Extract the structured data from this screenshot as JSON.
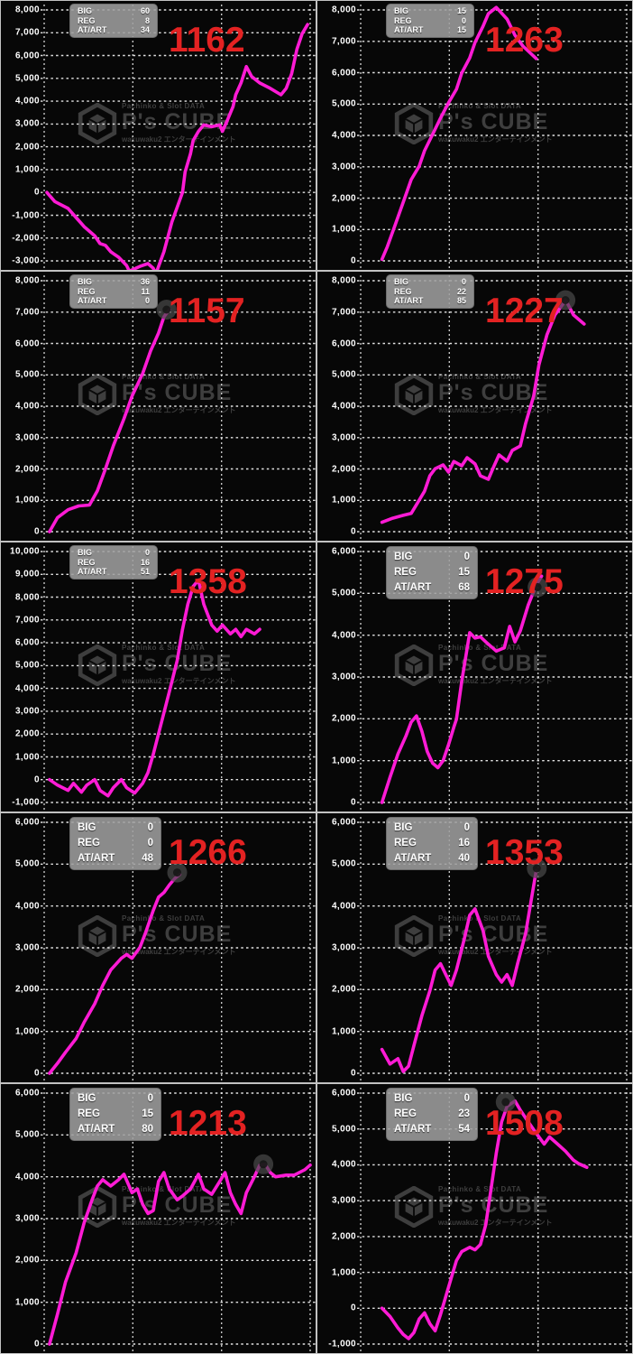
{
  "watermark": {
    "small_title": "Pachinko & Slot DATA",
    "brand": "P's CUBE",
    "tagline": "wakuwaku2 エンターテインメント",
    "color": "#3e3e3e"
  },
  "legend_labels": [
    "BIG",
    "REG",
    "AT/ART"
  ],
  "colors": {
    "line": "#ff1bd5",
    "number": "#e32222",
    "grid": "#eeeeee",
    "label": "#ffffff",
    "panel_bg": "#070707",
    "legend_bg": "#9e9e9e",
    "marker_outer": "#4a4a4a",
    "marker_inner": "#161616"
  },
  "chart_data": [
    {
      "type": "line",
      "number": "1162",
      "legend_values": [
        60,
        8,
        34
      ],
      "legend_size": "small",
      "y_max": 8000,
      "y_min": -3000,
      "y_step": 1000,
      "y_tick_labels": [
        "8,000",
        "7,000",
        "6,000",
        "5,000",
        "4,000",
        "3,000",
        "2,000",
        "1,000",
        "0",
        "-1,000",
        "-2,000",
        "-3,000"
      ],
      "points": [
        [
          0.01,
          0
        ],
        [
          0.04,
          -400
        ],
        [
          0.09,
          -700
        ],
        [
          0.12,
          -1100
        ],
        [
          0.15,
          -1500
        ],
        [
          0.19,
          -1900
        ],
        [
          0.21,
          -2240
        ],
        [
          0.23,
          -2320
        ],
        [
          0.25,
          -2600
        ],
        [
          0.28,
          -2840
        ],
        [
          0.31,
          -3200
        ],
        [
          0.32,
          -3450
        ],
        [
          0.36,
          -3240
        ],
        [
          0.39,
          -3120
        ],
        [
          0.41,
          -3320
        ],
        [
          0.42,
          -3560
        ],
        [
          0.45,
          -2600
        ],
        [
          0.48,
          -1300
        ],
        [
          0.52,
          0
        ],
        [
          0.53,
          900
        ],
        [
          0.55,
          1700
        ],
        [
          0.56,
          2280
        ],
        [
          0.58,
          2680
        ],
        [
          0.6,
          2960
        ],
        [
          0.63,
          2880
        ],
        [
          0.66,
          2960
        ],
        [
          0.67,
          2680
        ],
        [
          0.69,
          3200
        ],
        [
          0.71,
          3760
        ],
        [
          0.72,
          4280
        ],
        [
          0.74,
          4800
        ],
        [
          0.76,
          5520
        ],
        [
          0.78,
          5080
        ],
        [
          0.81,
          4800
        ],
        [
          0.85,
          4560
        ],
        [
          0.89,
          4280
        ],
        [
          0.91,
          4560
        ],
        [
          0.93,
          5200
        ],
        [
          0.95,
          6280
        ],
        [
          0.97,
          6960
        ],
        [
          0.99,
          7360
        ]
      ],
      "marker": null
    },
    {
      "type": "line",
      "number": "1263",
      "legend_values": [
        15,
        0,
        15
      ],
      "legend_size": "small",
      "y_max": 8000,
      "y_min": 0,
      "y_step": 1000,
      "y_tick_labels": [
        "8,000",
        "7,000",
        "6,000",
        "5,000",
        "4,000",
        "3,000",
        "2,000",
        "1,000",
        "0"
      ],
      "points": [
        [
          0.08,
          50
        ],
        [
          0.1,
          450
        ],
        [
          0.13,
          1150
        ],
        [
          0.16,
          1870
        ],
        [
          0.19,
          2590
        ],
        [
          0.22,
          3020
        ],
        [
          0.24,
          3510
        ],
        [
          0.27,
          4030
        ],
        [
          0.3,
          4550
        ],
        [
          0.33,
          5040
        ],
        [
          0.36,
          5470
        ],
        [
          0.38,
          5990
        ],
        [
          0.41,
          6470
        ],
        [
          0.43,
          6960
        ],
        [
          0.46,
          7480
        ],
        [
          0.48,
          7880
        ],
        [
          0.51,
          8080
        ],
        [
          0.55,
          7710
        ],
        [
          0.58,
          7190
        ],
        [
          0.61,
          6850
        ],
        [
          0.66,
          6450
        ]
      ],
      "marker": null
    },
    {
      "type": "line",
      "number": "1157",
      "legend_values": [
        36,
        11,
        0
      ],
      "legend_size": "small",
      "y_max": 8000,
      "y_min": 0,
      "y_step": 1000,
      "y_tick_labels": [
        "8,000",
        "7,000",
        "6,000",
        "5,000",
        "4,000",
        "3,000",
        "2,000",
        "1,000",
        "0"
      ],
      "points": [
        [
          0.02,
          0
        ],
        [
          0.05,
          450
        ],
        [
          0.09,
          700
        ],
        [
          0.13,
          820
        ],
        [
          0.17,
          850
        ],
        [
          0.2,
          1300
        ],
        [
          0.23,
          2000
        ],
        [
          0.26,
          2740
        ],
        [
          0.3,
          3600
        ],
        [
          0.33,
          4320
        ],
        [
          0.37,
          5040
        ],
        [
          0.4,
          5760
        ],
        [
          0.43,
          6330
        ],
        [
          0.45,
          6850
        ],
        [
          0.47,
          7080
        ]
      ],
      "marker": [
        0.46,
        7080
      ]
    },
    {
      "type": "line",
      "number": "1227",
      "legend_values": [
        0,
        22,
        85
      ],
      "legend_size": "small",
      "y_max": 8000,
      "y_min": 0,
      "y_step": 1000,
      "y_tick_labels": [
        "8,000",
        "7,000",
        "6,000",
        "5,000",
        "4,000",
        "3,000",
        "2,000",
        "1,000",
        "0"
      ],
      "points": [
        [
          0.08,
          300
        ],
        [
          0.12,
          430
        ],
        [
          0.16,
          520
        ],
        [
          0.19,
          580
        ],
        [
          0.21,
          860
        ],
        [
          0.24,
          1290
        ],
        [
          0.26,
          1780
        ],
        [
          0.28,
          2010
        ],
        [
          0.31,
          2130
        ],
        [
          0.33,
          1900
        ],
        [
          0.35,
          2240
        ],
        [
          0.38,
          2100
        ],
        [
          0.4,
          2360
        ],
        [
          0.43,
          2160
        ],
        [
          0.45,
          1780
        ],
        [
          0.48,
          1670
        ],
        [
          0.5,
          2070
        ],
        [
          0.52,
          2450
        ],
        [
          0.55,
          2250
        ],
        [
          0.57,
          2590
        ],
        [
          0.6,
          2730
        ],
        [
          0.62,
          3450
        ],
        [
          0.65,
          4320
        ],
        [
          0.67,
          5320
        ],
        [
          0.7,
          6270
        ],
        [
          0.73,
          6910
        ],
        [
          0.76,
          7250
        ],
        [
          0.77,
          7400
        ],
        [
          0.8,
          6910
        ],
        [
          0.84,
          6620
        ]
      ],
      "marker": [
        0.77,
        7380
      ]
    },
    {
      "type": "line",
      "number": "1358",
      "legend_values": [
        0,
        16,
        51
      ],
      "legend_size": "small",
      "y_max": 10000,
      "y_min": -1000,
      "y_step": 1000,
      "y_tick_labels": [
        "10,000",
        "9,000",
        "8,000",
        "7,000",
        "6,000",
        "5,000",
        "4,000",
        "3,000",
        "2,000",
        "1,000",
        "0",
        "-1,000"
      ],
      "points": [
        [
          0.02,
          0
        ],
        [
          0.05,
          -240
        ],
        [
          0.09,
          -470
        ],
        [
          0.11,
          -160
        ],
        [
          0.14,
          -550
        ],
        [
          0.16,
          -240
        ],
        [
          0.19,
          0
        ],
        [
          0.21,
          -470
        ],
        [
          0.24,
          -710
        ],
        [
          0.26,
          -350
        ],
        [
          0.29,
          0
        ],
        [
          0.31,
          -350
        ],
        [
          0.34,
          -590
        ],
        [
          0.37,
          -160
        ],
        [
          0.39,
          310
        ],
        [
          0.41,
          1100
        ],
        [
          0.44,
          2470
        ],
        [
          0.47,
          3840
        ],
        [
          0.5,
          5220
        ],
        [
          0.52,
          6590
        ],
        [
          0.54,
          7690
        ],
        [
          0.56,
          8470
        ],
        [
          0.58,
          8750
        ],
        [
          0.6,
          7690
        ],
        [
          0.63,
          6780
        ],
        [
          0.65,
          6510
        ],
        [
          0.67,
          6780
        ],
        [
          0.7,
          6390
        ],
        [
          0.72,
          6590
        ],
        [
          0.74,
          6270
        ],
        [
          0.76,
          6590
        ],
        [
          0.79,
          6390
        ],
        [
          0.81,
          6590
        ]
      ],
      "marker": null
    },
    {
      "type": "line",
      "number": "1275",
      "legend_values": [
        0,
        15,
        68
      ],
      "legend_size": "large",
      "y_max": 6000,
      "y_min": 0,
      "y_step": 1000,
      "y_tick_labels": [
        "6,000",
        "5,000",
        "4,000",
        "3,000",
        "2,000",
        "1,000",
        "0"
      ],
      "points": [
        [
          0.08,
          0
        ],
        [
          0.11,
          600
        ],
        [
          0.14,
          1160
        ],
        [
          0.17,
          1590
        ],
        [
          0.19,
          1920
        ],
        [
          0.21,
          2070
        ],
        [
          0.23,
          1700
        ],
        [
          0.25,
          1220
        ],
        [
          0.27,
          940
        ],
        [
          0.29,
          830
        ],
        [
          0.31,
          1000
        ],
        [
          0.33,
          1380
        ],
        [
          0.35,
          1800
        ],
        [
          0.36,
          1990
        ],
        [
          0.38,
          2900
        ],
        [
          0.41,
          4060
        ],
        [
          0.43,
          3930
        ],
        [
          0.45,
          3960
        ],
        [
          0.47,
          3840
        ],
        [
          0.51,
          3620
        ],
        [
          0.54,
          3700
        ],
        [
          0.56,
          4210
        ],
        [
          0.58,
          3840
        ],
        [
          0.6,
          4100
        ],
        [
          0.63,
          4720
        ],
        [
          0.66,
          5200
        ],
        [
          0.68,
          5410
        ]
      ],
      "marker": [
        0.665,
        5150
      ]
    },
    {
      "type": "line",
      "number": "1266",
      "legend_values": [
        0,
        0,
        48
      ],
      "legend_size": "large",
      "y_max": 6000,
      "y_min": 0,
      "y_step": 1000,
      "y_tick_labels": [
        "6,000",
        "5,000",
        "4,000",
        "3,000",
        "2,000",
        "1,000",
        "0"
      ],
      "points": [
        [
          0.02,
          0
        ],
        [
          0.05,
          240
        ],
        [
          0.08,
          500
        ],
        [
          0.12,
          830
        ],
        [
          0.15,
          1220
        ],
        [
          0.19,
          1660
        ],
        [
          0.22,
          2100
        ],
        [
          0.25,
          2470
        ],
        [
          0.29,
          2750
        ],
        [
          0.31,
          2840
        ],
        [
          0.33,
          2750
        ],
        [
          0.36,
          3010
        ],
        [
          0.38,
          3340
        ],
        [
          0.41,
          3890
        ],
        [
          0.43,
          4210
        ],
        [
          0.45,
          4320
        ],
        [
          0.47,
          4500
        ],
        [
          0.49,
          4650
        ],
        [
          0.51,
          4760
        ]
      ],
      "marker": [
        0.5,
        4800
      ]
    },
    {
      "type": "line",
      "number": "1353",
      "legend_values": [
        0,
        16,
        40
      ],
      "legend_size": "large",
      "y_max": 6000,
      "y_min": 0,
      "y_step": 1000,
      "y_tick_labels": [
        "6,000",
        "5,000",
        "4,000",
        "3,000",
        "2,000",
        "1,000",
        "0"
      ],
      "points": [
        [
          0.08,
          570
        ],
        [
          0.11,
          220
        ],
        [
          0.14,
          350
        ],
        [
          0.16,
          40
        ],
        [
          0.18,
          170
        ],
        [
          0.2,
          660
        ],
        [
          0.23,
          1380
        ],
        [
          0.26,
          1970
        ],
        [
          0.28,
          2470
        ],
        [
          0.3,
          2620
        ],
        [
          0.32,
          2360
        ],
        [
          0.34,
          2100
        ],
        [
          0.36,
          2470
        ],
        [
          0.39,
          3230
        ],
        [
          0.41,
          3780
        ],
        [
          0.43,
          3930
        ],
        [
          0.46,
          3410
        ],
        [
          0.48,
          2800
        ],
        [
          0.51,
          2360
        ],
        [
          0.53,
          2180
        ],
        [
          0.55,
          2360
        ],
        [
          0.57,
          2100
        ],
        [
          0.59,
          2620
        ],
        [
          0.62,
          3340
        ],
        [
          0.64,
          4100
        ],
        [
          0.66,
          4850
        ]
      ],
      "marker": [
        0.662,
        4900
      ]
    },
    {
      "type": "line",
      "number": "1213",
      "legend_values": [
        0,
        15,
        80
      ],
      "legend_size": "large",
      "y_max": 6000,
      "y_min": 0,
      "y_step": 1000,
      "y_tick_labels": [
        "6,000",
        "5,000",
        "4,000",
        "3,000",
        "2,000",
        "1,000",
        "0"
      ],
      "points": [
        [
          0.02,
          0
        ],
        [
          0.05,
          720
        ],
        [
          0.08,
          1480
        ],
        [
          0.12,
          2180
        ],
        [
          0.15,
          2900
        ],
        [
          0.18,
          3450
        ],
        [
          0.2,
          3780
        ],
        [
          0.22,
          3930
        ],
        [
          0.25,
          3780
        ],
        [
          0.28,
          3930
        ],
        [
          0.3,
          4060
        ],
        [
          0.33,
          3620
        ],
        [
          0.35,
          3710
        ],
        [
          0.37,
          3340
        ],
        [
          0.39,
          3120
        ],
        [
          0.41,
          3190
        ],
        [
          0.43,
          3890
        ],
        [
          0.45,
          4100
        ],
        [
          0.47,
          3710
        ],
        [
          0.5,
          3450
        ],
        [
          0.52,
          3540
        ],
        [
          0.55,
          3710
        ],
        [
          0.58,
          4060
        ],
        [
          0.6,
          3710
        ],
        [
          0.63,
          3580
        ],
        [
          0.66,
          3890
        ],
        [
          0.68,
          4100
        ],
        [
          0.7,
          3620
        ],
        [
          0.72,
          3340
        ],
        [
          0.74,
          3120
        ],
        [
          0.76,
          3620
        ],
        [
          0.79,
          4000
        ],
        [
          0.81,
          4280
        ],
        [
          0.83,
          4300
        ],
        [
          0.85,
          4100
        ],
        [
          0.87,
          4000
        ],
        [
          0.91,
          4040
        ],
        [
          0.94,
          4040
        ],
        [
          0.98,
          4170
        ],
        [
          1.0,
          4280
        ]
      ],
      "marker": [
        0.824,
        4300
      ]
    },
    {
      "type": "line",
      "number": "1508",
      "legend_values": [
        0,
        23,
        54
      ],
      "legend_size": "large",
      "y_max": 6000,
      "y_min": -1000,
      "y_step": 1000,
      "y_tick_labels": [
        "6,000",
        "5,000",
        "4,000",
        "3,000",
        "2,000",
        "1,000",
        "0",
        "-1,000"
      ],
      "points": [
        [
          0.08,
          0
        ],
        [
          0.11,
          -230
        ],
        [
          0.14,
          -550
        ],
        [
          0.16,
          -730
        ],
        [
          0.18,
          -850
        ],
        [
          0.2,
          -680
        ],
        [
          0.22,
          -300
        ],
        [
          0.24,
          -130
        ],
        [
          0.26,
          -430
        ],
        [
          0.28,
          -630
        ],
        [
          0.3,
          -180
        ],
        [
          0.32,
          330
        ],
        [
          0.34,
          830
        ],
        [
          0.36,
          1330
        ],
        [
          0.38,
          1580
        ],
        [
          0.41,
          1700
        ],
        [
          0.43,
          1630
        ],
        [
          0.45,
          1780
        ],
        [
          0.47,
          2330
        ],
        [
          0.49,
          3330
        ],
        [
          0.51,
          4330
        ],
        [
          0.53,
          5200
        ],
        [
          0.55,
          5630
        ],
        [
          0.58,
          5780
        ],
        [
          0.6,
          5530
        ],
        [
          0.63,
          5200
        ],
        [
          0.66,
          4880
        ],
        [
          0.69,
          4580
        ],
        [
          0.71,
          4780
        ],
        [
          0.74,
          4580
        ],
        [
          0.77,
          4380
        ],
        [
          0.8,
          4130
        ],
        [
          0.82,
          4030
        ],
        [
          0.85,
          3930
        ]
      ],
      "marker": [
        0.545,
        5750
      ]
    }
  ]
}
